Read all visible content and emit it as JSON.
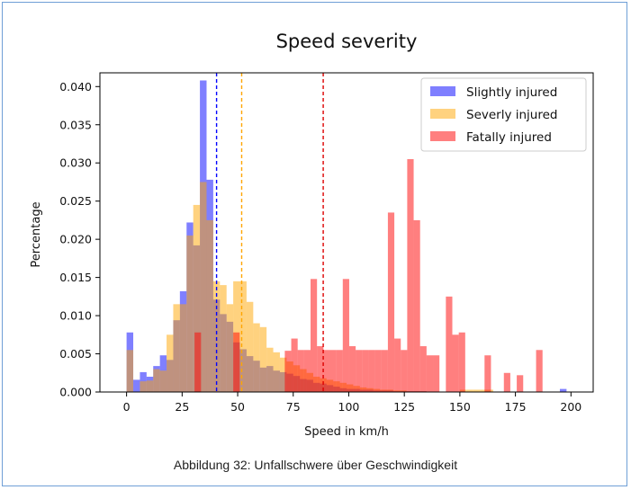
{
  "caption": "Abbildung 32: Unfallschwere über Geschwindigkeit",
  "chart_data": {
    "type": "bar",
    "title": "Speed severity",
    "xlabel": "Speed in km/h",
    "ylabel": "Percentage",
    "xlim": [
      -12,
      210
    ],
    "ylim": [
      0,
      0.0418
    ],
    "xticks": [
      0,
      25,
      50,
      75,
      100,
      125,
      150,
      175,
      200
    ],
    "xtick_labels": [
      "0",
      "25",
      "50",
      "75",
      "100",
      "125",
      "150",
      "175",
      "200"
    ],
    "yticks": [
      0.0,
      0.005,
      0.01,
      0.015,
      0.02,
      0.025,
      0.03,
      0.035,
      0.04
    ],
    "ytick_labels": [
      "0.000",
      "0.005",
      "0.010",
      "0.015",
      "0.020",
      "0.025",
      "0.030",
      "0.035",
      "0.040"
    ],
    "grid": false,
    "legend_position": "top-right",
    "series": [
      {
        "name": "Slightly injured",
        "color": "#0000ff",
        "opacity": 0.5,
        "bin_width": 3.0,
        "bin_start": 0,
        "values": [
          0.0078,
          0.0016,
          0.0026,
          0.002,
          0.0034,
          0.0048,
          0.0042,
          0.0094,
          0.0132,
          0.0222,
          0.0192,
          0.0408,
          0.0278,
          0.0121,
          0.0102,
          0.0092,
          0.0065,
          0.0056,
          0.0047,
          0.0041,
          0.0032,
          0.0034,
          0.0028,
          0.0026,
          0.0024,
          0.0021,
          0.0017,
          0.0016,
          0.0012,
          0.0011,
          0.0009,
          0.0007,
          0.0005,
          0.0004,
          0.0004,
          0.0003,
          0.0003,
          0.0002,
          0.0002,
          0.0002,
          0.0001,
          0.0001,
          0.0001,
          0.0001,
          0.0001,
          0.0,
          0.0,
          0.0,
          0.0,
          0.0,
          0.0,
          0.0,
          0.0,
          0.0,
          0.0,
          0.0,
          0.0,
          0.0,
          0.0,
          0.0,
          0.0,
          0.0,
          0.0,
          0.0,
          0.0,
          0.0004
        ]
      },
      {
        "name": "Severly injured",
        "color": "#ffa500",
        "opacity": 0.5,
        "bin_width": 3.0,
        "bin_start": 0,
        "values": [
          0.0055,
          0.0,
          0.0014,
          0.0015,
          0.003,
          0.0028,
          0.0075,
          0.0115,
          0.0115,
          0.0205,
          0.0245,
          0.0275,
          0.0225,
          0.0145,
          0.014,
          0.0115,
          0.0145,
          0.0145,
          0.0118,
          0.009,
          0.0085,
          0.0058,
          0.0052,
          0.0045,
          0.004,
          0.0035,
          0.003,
          0.0025,
          0.002,
          0.0018,
          0.0016,
          0.0014,
          0.0012,
          0.001,
          0.0008,
          0.0006,
          0.0005,
          0.0004,
          0.0003,
          0.0003,
          0.0002,
          0.0002,
          0.0001,
          0.0001,
          0.0001,
          0.0,
          0.0,
          0.0,
          0.0,
          0.0,
          0.0003,
          0.0003,
          0.0003,
          0.0003,
          0.0003
        ]
      },
      {
        "name": "Fatally injured",
        "color": "#ff0000",
        "opacity": 0.5,
        "bin_width": 2.9,
        "bin_start": 13.2,
        "values": [
          0.0,
          0.0,
          0.0,
          0.0,
          0.0,
          0.0,
          0.0078,
          0.0,
          0.0,
          0.0,
          0.0,
          0.0,
          0.0078,
          0.0,
          0.0,
          0.0,
          0.0,
          0.0,
          0.0,
          0.0,
          0.0054,
          0.007,
          0.0055,
          0.0055,
          0.0148,
          0.006,
          0.0055,
          0.0055,
          0.0055,
          0.0148,
          0.006,
          0.0055,
          0.0055,
          0.0055,
          0.0055,
          0.0055,
          0.0235,
          0.007,
          0.0055,
          0.0305,
          0.0225,
          0.006,
          0.0048,
          0.0048,
          0.0,
          0.0125,
          0.0075,
          0.0078,
          0.0,
          0.0,
          0.0,
          0.0048,
          0.0,
          0.0,
          0.0025,
          0.0,
          0.0022,
          0.0,
          0.0,
          0.0055,
          0.0,
          0.0
        ]
      }
    ],
    "mean_lines": [
      {
        "name": "Slightly injured mean",
        "x": 40.5,
        "color": "#0000ff"
      },
      {
        "name": "Severly injured mean",
        "x": 51.8,
        "color": "#ffa500"
      },
      {
        "name": "Fatally injured mean",
        "x": 88.5,
        "color": "#dd0000"
      }
    ]
  }
}
